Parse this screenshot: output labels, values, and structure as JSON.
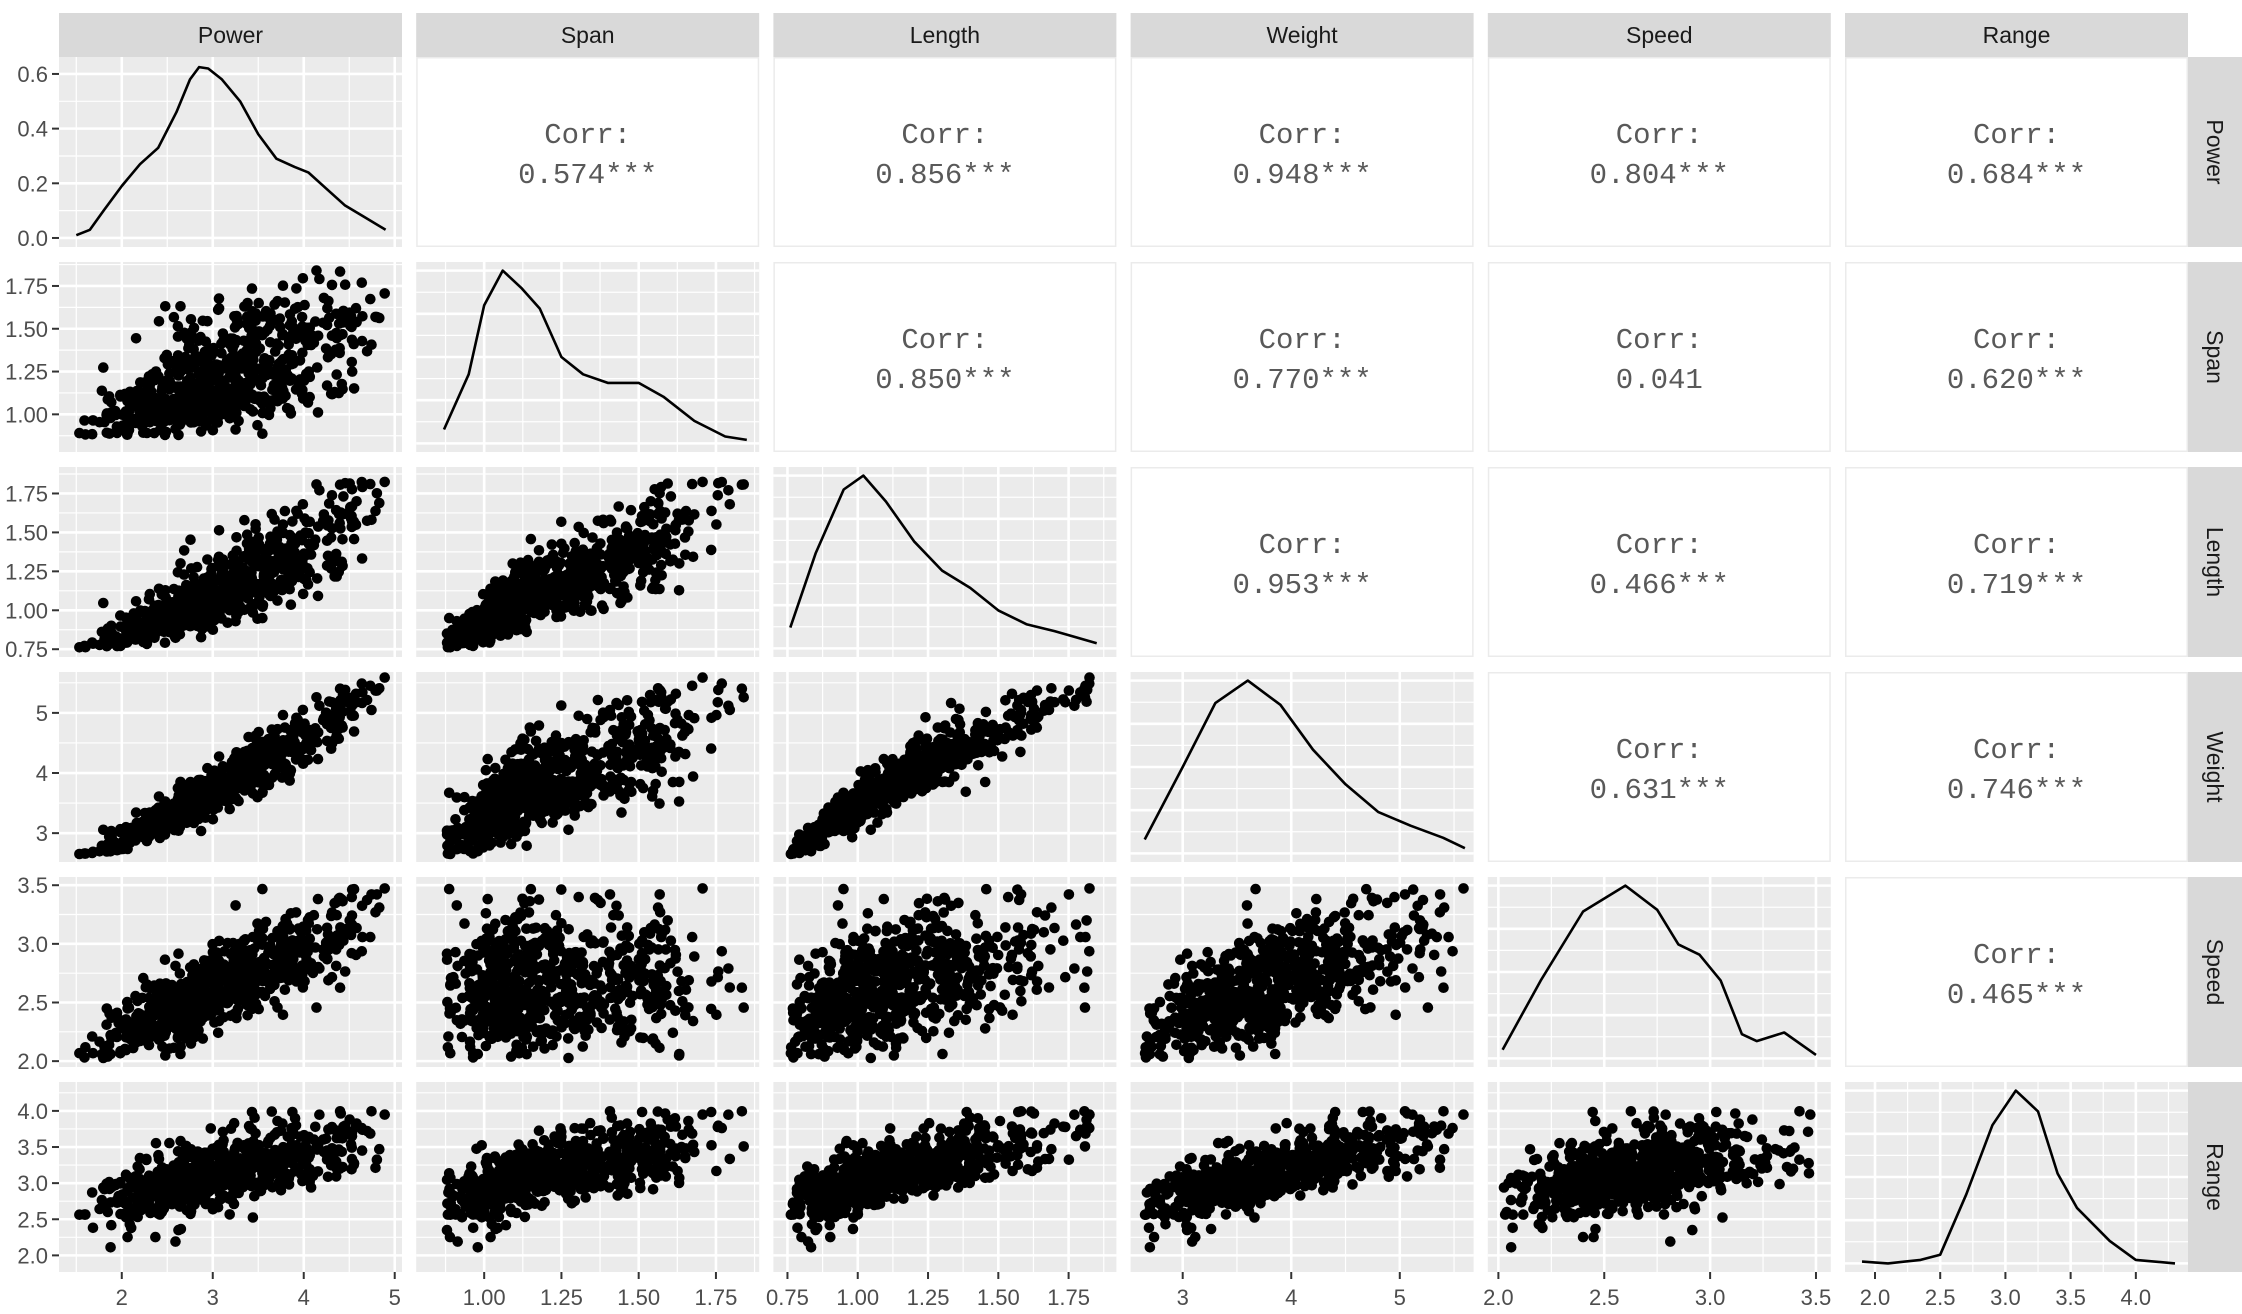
{
  "chart_data": {
    "type": "scatter",
    "layout": "pairs-matrix",
    "grid": true,
    "colors": {
      "panel_background": "#ebebeb",
      "grid": "#ffffff",
      "strip": "#d9d9d9",
      "points": "#000000",
      "line": "#000000",
      "corr_text": "#595959"
    },
    "corr_title": "Corr:",
    "variables": [
      {
        "name": "Power",
        "limits": [
          1.31,
          5.08
        ],
        "ticks": [
          2,
          3,
          4,
          5
        ],
        "tick_labels": [
          "2",
          "3",
          "4",
          "5"
        ],
        "density": [
          [
            1.5,
            0.01
          ],
          [
            1.65,
            0.03
          ],
          [
            1.8,
            0.1
          ],
          [
            2.0,
            0.19
          ],
          [
            2.2,
            0.27
          ],
          [
            2.4,
            0.33
          ],
          [
            2.6,
            0.46
          ],
          [
            2.75,
            0.58
          ],
          [
            2.85,
            0.625
          ],
          [
            2.95,
            0.62
          ],
          [
            3.1,
            0.58
          ],
          [
            3.3,
            0.5
          ],
          [
            3.5,
            0.38
          ],
          [
            3.7,
            0.29
          ],
          [
            3.9,
            0.26
          ],
          [
            4.05,
            0.24
          ],
          [
            4.25,
            0.18
          ],
          [
            4.45,
            0.12
          ],
          [
            4.65,
            0.08
          ],
          [
            4.9,
            0.03
          ]
        ]
      },
      {
        "name": "Span",
        "limits": [
          0.78,
          1.89
        ],
        "ticks": [
          1.0,
          1.25,
          1.5,
          1.75
        ],
        "tick_labels": [
          "1.00",
          "1.25",
          "1.50",
          "1.75"
        ],
        "density": [
          [
            0.87,
            0.08
          ],
          [
            0.95,
            0.4
          ],
          [
            1.0,
            0.8
          ],
          [
            1.06,
            1.0
          ],
          [
            1.12,
            0.9
          ],
          [
            1.18,
            0.78
          ],
          [
            1.25,
            0.5
          ],
          [
            1.32,
            0.4
          ],
          [
            1.4,
            0.35
          ],
          [
            1.5,
            0.35
          ],
          [
            1.58,
            0.27
          ],
          [
            1.68,
            0.13
          ],
          [
            1.78,
            0.04
          ],
          [
            1.85,
            0.02
          ]
        ]
      },
      {
        "name": "Length",
        "limits": [
          0.7,
          1.92
        ],
        "ticks": [
          0.75,
          1.0,
          1.25,
          1.5,
          1.75
        ],
        "tick_labels": [
          "0.75",
          "1.00",
          "1.25",
          "1.50",
          "1.75"
        ],
        "density": [
          [
            0.76,
            0.12
          ],
          [
            0.85,
            0.55
          ],
          [
            0.95,
            0.92
          ],
          [
            1.02,
            1.0
          ],
          [
            1.1,
            0.85
          ],
          [
            1.2,
            0.62
          ],
          [
            1.3,
            0.45
          ],
          [
            1.4,
            0.35
          ],
          [
            1.5,
            0.22
          ],
          [
            1.6,
            0.14
          ],
          [
            1.7,
            0.1
          ],
          [
            1.85,
            0.03
          ]
        ]
      },
      {
        "name": "Weight",
        "limits": [
          2.52,
          5.68
        ],
        "ticks": [
          3,
          4,
          5
        ],
        "tick_labels": [
          "3",
          "4",
          "5"
        ],
        "density": [
          [
            2.65,
            0.08
          ],
          [
            3.0,
            0.5
          ],
          [
            3.3,
            0.87
          ],
          [
            3.6,
            1.0
          ],
          [
            3.9,
            0.86
          ],
          [
            4.2,
            0.6
          ],
          [
            4.5,
            0.4
          ],
          [
            4.8,
            0.24
          ],
          [
            5.1,
            0.16
          ],
          [
            5.4,
            0.09
          ],
          [
            5.6,
            0.03
          ]
        ]
      },
      {
        "name": "Speed",
        "limits": [
          1.95,
          3.57
        ],
        "ticks": [
          2.0,
          2.5,
          3.0,
          3.5
        ],
        "tick_labels": [
          "2.0",
          "2.5",
          "3.0",
          "3.5"
        ],
        "density": [
          [
            2.02,
            0.05
          ],
          [
            2.2,
            0.45
          ],
          [
            2.4,
            0.85
          ],
          [
            2.6,
            1.0
          ],
          [
            2.75,
            0.86
          ],
          [
            2.85,
            0.66
          ],
          [
            2.95,
            0.6
          ],
          [
            3.05,
            0.45
          ],
          [
            3.15,
            0.14
          ],
          [
            3.22,
            0.1
          ],
          [
            3.35,
            0.15
          ],
          [
            3.5,
            0.02
          ]
        ]
      },
      {
        "name": "Range",
        "limits": [
          1.77,
          4.4
        ],
        "ticks": [
          2.0,
          2.5,
          3.0,
          3.5,
          4.0
        ],
        "tick_labels": [
          "2.0",
          "2.5",
          "3.0",
          "3.5",
          "4.0"
        ],
        "density": [
          [
            1.9,
            0.01
          ],
          [
            2.1,
            0.0
          ],
          [
            2.35,
            0.02
          ],
          [
            2.5,
            0.05
          ],
          [
            2.7,
            0.4
          ],
          [
            2.9,
            0.8
          ],
          [
            3.08,
            1.0
          ],
          [
            3.25,
            0.88
          ],
          [
            3.4,
            0.52
          ],
          [
            3.55,
            0.32
          ],
          [
            3.8,
            0.13
          ],
          [
            4.0,
            0.02
          ],
          [
            4.3,
            0.0
          ]
        ]
      }
    ],
    "density_axis": {
      "variable": "Power",
      "limits": [
        -0.033,
        0.662
      ],
      "ticks": [
        0.0,
        0.2,
        0.4,
        0.6
      ],
      "tick_labels": [
        "0.0",
        "0.2",
        "0.4",
        "0.6"
      ]
    },
    "correlations": [
      {
        "x": "Span",
        "y": "Power",
        "r": 0.574,
        "label": "0.574***"
      },
      {
        "x": "Length",
        "y": "Power",
        "r": 0.856,
        "label": "0.856***"
      },
      {
        "x": "Weight",
        "y": "Power",
        "r": 0.948,
        "label": "0.948***"
      },
      {
        "x": "Speed",
        "y": "Power",
        "r": 0.804,
        "label": "0.804***"
      },
      {
        "x": "Range",
        "y": "Power",
        "r": 0.684,
        "label": "0.684***"
      },
      {
        "x": "Length",
        "y": "Span",
        "r": 0.85,
        "label": "0.850***"
      },
      {
        "x": "Weight",
        "y": "Span",
        "r": 0.77,
        "label": "0.770***"
      },
      {
        "x": "Speed",
        "y": "Span",
        "r": 0.041,
        "label": "0.041"
      },
      {
        "x": "Range",
        "y": "Span",
        "r": 0.62,
        "label": "0.620***"
      },
      {
        "x": "Weight",
        "y": "Length",
        "r": 0.953,
        "label": "0.953***"
      },
      {
        "x": "Speed",
        "y": "Length",
        "r": 0.466,
        "label": "0.466***"
      },
      {
        "x": "Range",
        "y": "Length",
        "r": 0.719,
        "label": "0.719***"
      },
      {
        "x": "Speed",
        "y": "Weight",
        "r": 0.631,
        "label": "0.631***"
      },
      {
        "x": "Range",
        "y": "Weight",
        "r": 0.746,
        "label": "0.746***"
      },
      {
        "x": "Range",
        "y": "Speed",
        "r": 0.465,
        "label": "0.465***"
      }
    ]
  }
}
